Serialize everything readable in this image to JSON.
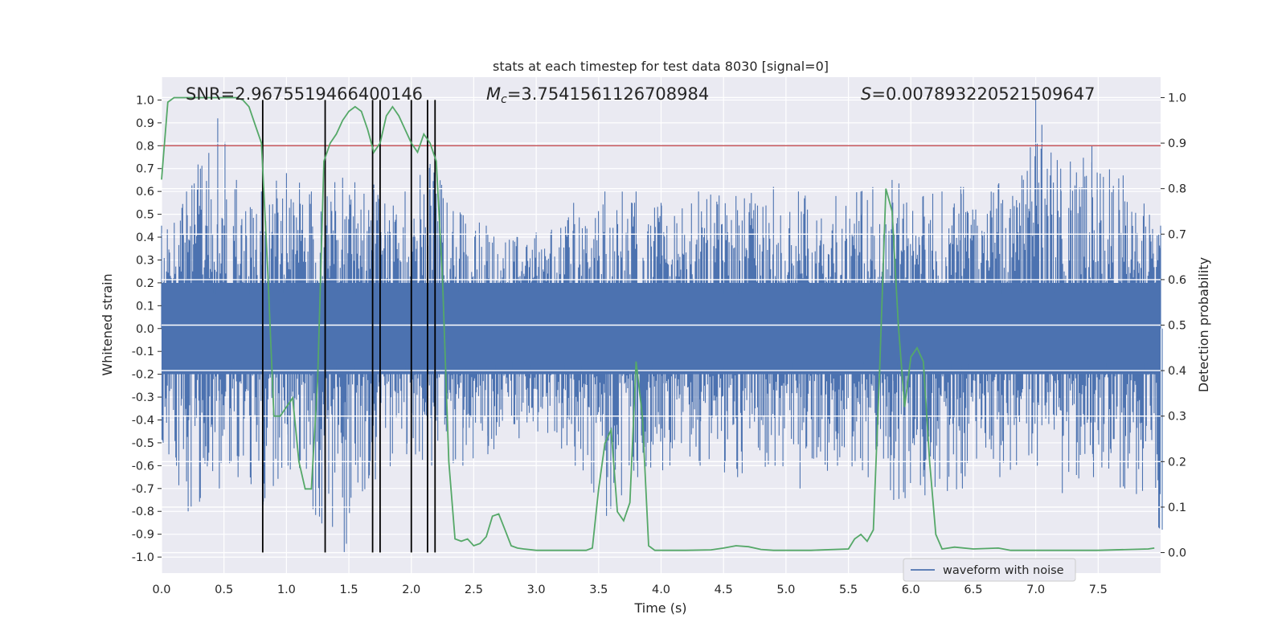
{
  "chart_data": {
    "type": "line",
    "title": "stats at each timestep for test data 8030 [signal=0]",
    "xlabel": "Time (s)",
    "ylabel": "Whitened strain",
    "ylabel_right": "Detection probability",
    "xlim": [
      0,
      8
    ],
    "ylim": [
      -1.07,
      1.1
    ],
    "ylim_right": [
      -0.045,
      1.045
    ],
    "x_ticks": [
      "0.0",
      "0.5",
      "1.0",
      "1.5",
      "2.0",
      "2.5",
      "3.0",
      "3.5",
      "4.0",
      "4.5",
      "5.0",
      "5.5",
      "6.0",
      "6.5",
      "7.0",
      "7.5"
    ],
    "y_ticks": [
      "1.0",
      "0.9",
      "0.8",
      "0.7",
      "0.6",
      "0.5",
      "0.4",
      "0.3",
      "0.2",
      "0.1",
      "0.0",
      "-0.1",
      "-0.2",
      "-0.3",
      "-0.4",
      "-0.5",
      "-0.6",
      "-0.7",
      "-0.8",
      "-0.9",
      "-1.0"
    ],
    "y_ticks_right": [
      "1.0",
      "0.9",
      "0.8",
      "0.7",
      "0.6",
      "0.5",
      "0.4",
      "0.3",
      "0.2",
      "0.1",
      "0.0"
    ],
    "grid": true,
    "legend_position": "lower-right",
    "annotations": {
      "snr": "SNR=2.9675519466400146",
      "mc_symbol": "M",
      "mc_sub": "c",
      "mc_value": "=3.7541561126708984",
      "s_symbol": "S",
      "s_value": "=0.007893220521509647"
    },
    "threshold": {
      "y": 0.8,
      "color": "#c44e52"
    },
    "vlines": {
      "x": [
        0.81,
        1.31,
        1.69,
        1.75,
        2.0,
        2.13,
        2.19
      ],
      "y_range": [
        -0.98,
        1.0
      ],
      "color": "#000000"
    },
    "series": [
      {
        "name": "waveform with noise",
        "axis": "left",
        "color": "#4c72b0",
        "envelope": {
          "x": [
            0.0,
            0.2,
            0.45,
            0.6,
            0.8,
            1.0,
            1.2,
            1.45,
            1.7,
            1.95,
            2.15,
            2.4,
            2.6,
            2.85,
            3.0,
            3.3,
            3.55,
            3.8,
            4.0,
            4.3,
            4.6,
            4.9,
            5.1,
            5.4,
            5.6,
            5.85,
            6.1,
            6.4,
            6.7,
            7.0,
            7.2,
            7.45,
            7.7,
            8.0
          ],
          "upper": [
            0.45,
            0.6,
            0.92,
            0.65,
            0.6,
            0.68,
            0.6,
            0.66,
            0.63,
            0.6,
            0.72,
            0.5,
            0.45,
            0.4,
            0.42,
            0.55,
            0.6,
            0.6,
            0.55,
            0.6,
            0.58,
            0.62,
            0.6,
            0.58,
            0.6,
            0.65,
            0.58,
            0.62,
            0.63,
            1.0,
            0.7,
            0.8,
            0.67,
            0.45
          ],
          "lower": [
            -0.5,
            -0.8,
            -0.7,
            -0.65,
            -0.77,
            -0.6,
            -0.79,
            -0.98,
            -0.66,
            -0.55,
            -0.6,
            -0.6,
            -0.55,
            -0.48,
            -0.45,
            -0.6,
            -0.82,
            -0.65,
            -0.62,
            -0.6,
            -0.65,
            -0.6,
            -0.7,
            -0.6,
            -0.62,
            -0.75,
            -0.73,
            -0.7,
            -0.65,
            -0.6,
            -0.72,
            -0.65,
            -0.7,
            -0.88
          ]
        }
      },
      {
        "name": "detection probability",
        "axis": "right",
        "color": "#55a868",
        "x": [
          0.0,
          0.05,
          0.1,
          0.2,
          0.3,
          0.4,
          0.5,
          0.6,
          0.65,
          0.7,
          0.75,
          0.8,
          0.85,
          0.9,
          0.95,
          1.0,
          1.05,
          1.1,
          1.15,
          1.2,
          1.25,
          1.3,
          1.35,
          1.4,
          1.45,
          1.5,
          1.55,
          1.6,
          1.65,
          1.7,
          1.75,
          1.8,
          1.85,
          1.9,
          1.95,
          2.0,
          2.05,
          2.1,
          2.15,
          2.2,
          2.25,
          2.3,
          2.35,
          2.4,
          2.45,
          2.5,
          2.55,
          2.6,
          2.65,
          2.7,
          2.75,
          2.8,
          2.85,
          2.9,
          3.0,
          3.2,
          3.4,
          3.45,
          3.5,
          3.55,
          3.6,
          3.65,
          3.7,
          3.75,
          3.8,
          3.85,
          3.9,
          3.95,
          4.0,
          4.2,
          4.4,
          4.5,
          4.6,
          4.7,
          4.75,
          4.8,
          4.9,
          5.0,
          5.2,
          5.5,
          5.55,
          5.6,
          5.65,
          5.7,
          5.75,
          5.8,
          5.85,
          5.9,
          5.95,
          6.0,
          6.05,
          6.1,
          6.15,
          6.2,
          6.25,
          6.3,
          6.35,
          6.5,
          6.7,
          6.8,
          7.0,
          7.5,
          7.9,
          7.95
        ],
        "y": [
          0.82,
          0.99,
          1.0,
          1.0,
          1.0,
          1.0,
          1.0,
          1.0,
          0.995,
          0.98,
          0.94,
          0.9,
          0.62,
          0.3,
          0.3,
          0.32,
          0.34,
          0.2,
          0.14,
          0.14,
          0.38,
          0.86,
          0.9,
          0.92,
          0.95,
          0.97,
          0.98,
          0.97,
          0.93,
          0.88,
          0.9,
          0.96,
          0.98,
          0.96,
          0.93,
          0.9,
          0.88,
          0.92,
          0.9,
          0.86,
          0.6,
          0.2,
          0.03,
          0.025,
          0.03,
          0.015,
          0.02,
          0.035,
          0.08,
          0.085,
          0.05,
          0.015,
          0.01,
          0.008,
          0.005,
          0.005,
          0.005,
          0.01,
          0.14,
          0.24,
          0.27,
          0.09,
          0.07,
          0.11,
          0.42,
          0.3,
          0.015,
          0.005,
          0.005,
          0.005,
          0.006,
          0.01,
          0.015,
          0.013,
          0.01,
          0.007,
          0.005,
          0.005,
          0.005,
          0.008,
          0.03,
          0.04,
          0.025,
          0.05,
          0.4,
          0.8,
          0.75,
          0.5,
          0.32,
          0.43,
          0.45,
          0.42,
          0.2,
          0.04,
          0.008,
          0.01,
          0.012,
          0.008,
          0.01,
          0.005,
          0.005,
          0.005,
          0.008,
          0.01
        ]
      }
    ]
  }
}
